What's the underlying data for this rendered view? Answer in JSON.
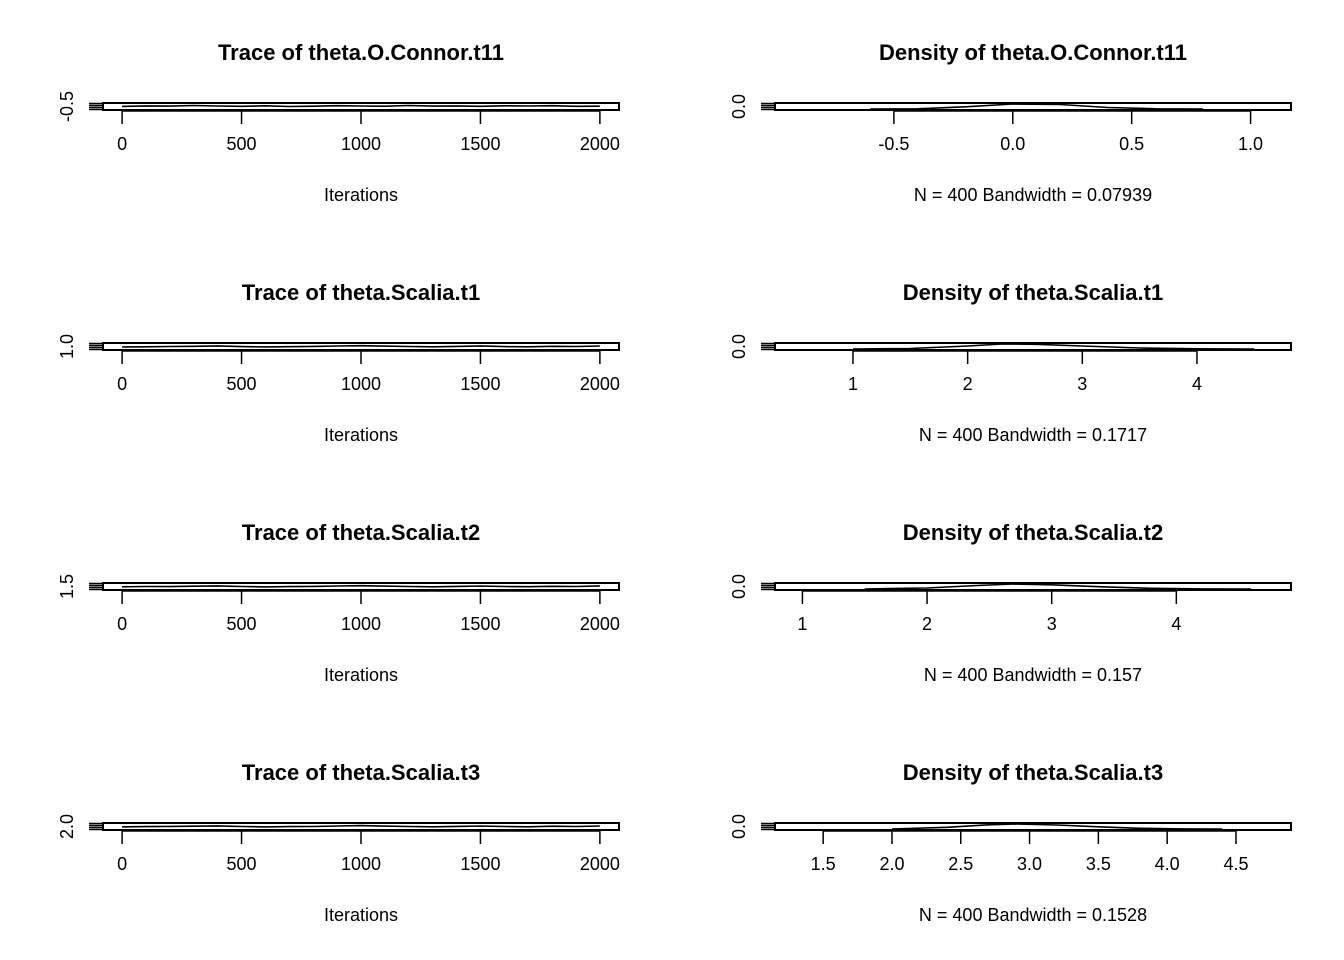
{
  "chart_data": [
    {
      "type": "line",
      "title": "Trace of theta.O.Connor.t11",
      "xlabel": "Iterations",
      "ylabel": "",
      "xlim": [
        -80,
        2080
      ],
      "x_ticks": [
        0,
        500,
        1000,
        1500,
        2000
      ],
      "x_tick_labels": [
        "0",
        "500",
        "1000",
        "1500",
        "2000"
      ],
      "y_tick_labels": [
        "-0.5"
      ],
      "series": [
        {
          "x": [
            0,
            100,
            200,
            300,
            400,
            500,
            600,
            700,
            800,
            900,
            1000,
            1100,
            1200,
            1300,
            1400,
            1500,
            1600,
            1700,
            1800,
            1900,
            2000
          ],
          "values": [
            0.52,
            0.62,
            0.58,
            0.7,
            0.61,
            0.55,
            0.64,
            0.5,
            0.57,
            0.67,
            0.6,
            0.56,
            0.69,
            0.58,
            0.62,
            0.54,
            0.63,
            0.59,
            0.66,
            0.55,
            0.57
          ]
        }
      ]
    },
    {
      "type": "line",
      "title": "Density of theta.O.Connor.t11",
      "xlabel": "N = 400   Bandwidth = 0.07939",
      "ylabel": "",
      "xlim": [
        -1.0,
        1.17
      ],
      "x_ticks": [
        -0.5,
        0.0,
        0.5,
        1.0
      ],
      "x_tick_labels": [
        "-0.5",
        "0.0",
        "0.5",
        "1.0"
      ],
      "y_tick_labels": [
        "0.0"
      ],
      "series": [
        {
          "x": [
            -0.6,
            -0.4,
            -0.2,
            0.0,
            0.2,
            0.4,
            0.6,
            0.8
          ],
          "values": [
            0.0,
            0.05,
            0.45,
            1.0,
            0.9,
            0.3,
            0.05,
            0.0
          ]
        }
      ]
    },
    {
      "type": "line",
      "title": "Trace of theta.Scalia.t1",
      "xlabel": "Iterations",
      "ylabel": "",
      "xlim": [
        -80,
        2080
      ],
      "x_ticks": [
        0,
        500,
        1000,
        1500,
        2000
      ],
      "x_tick_labels": [
        "0",
        "500",
        "1000",
        "1500",
        "2000"
      ],
      "y_tick_labels": [
        "1.0"
      ],
      "series": [
        {
          "x": [
            0,
            100,
            200,
            300,
            400,
            500,
            600,
            700,
            800,
            900,
            1000,
            1100,
            1200,
            1300,
            1400,
            1500,
            1600,
            1700,
            1800,
            1900,
            2000
          ],
          "values": [
            0.4,
            0.45,
            0.5,
            0.55,
            0.62,
            0.48,
            0.42,
            0.46,
            0.52,
            0.6,
            0.66,
            0.58,
            0.5,
            0.44,
            0.52,
            0.61,
            0.49,
            0.45,
            0.55,
            0.5,
            0.6
          ]
        }
      ]
    },
    {
      "type": "line",
      "title": "Density of theta.Scalia.t1",
      "xlabel": "N = 400   Bandwidth = 0.1717",
      "ylabel": "",
      "xlim": [
        0.32,
        4.82
      ],
      "x_ticks": [
        1,
        2,
        3,
        4
      ],
      "x_tick_labels": [
        "1",
        "2",
        "3",
        "4"
      ],
      "y_tick_labels": [
        "0.0"
      ],
      "series": [
        {
          "x": [
            1.0,
            1.5,
            2.0,
            2.3,
            2.6,
            3.0,
            3.5,
            4.0,
            4.5
          ],
          "values": [
            0.0,
            0.1,
            0.6,
            1.0,
            0.95,
            0.6,
            0.2,
            0.04,
            0.0
          ]
        }
      ]
    },
    {
      "type": "line",
      "title": "Trace of theta.Scalia.t2",
      "xlabel": "Iterations",
      "ylabel": "",
      "xlim": [
        -80,
        2080
      ],
      "x_ticks": [
        0,
        500,
        1000,
        1500,
        2000
      ],
      "x_tick_labels": [
        "0",
        "500",
        "1000",
        "1500",
        "2000"
      ],
      "y_tick_labels": [
        "1.5"
      ],
      "series": [
        {
          "x": [
            0,
            100,
            200,
            300,
            400,
            500,
            600,
            700,
            800,
            900,
            1000,
            1100,
            1200,
            1300,
            1400,
            1500,
            1600,
            1700,
            1800,
            1900,
            2000
          ],
          "values": [
            0.45,
            0.5,
            0.48,
            0.56,
            0.62,
            0.5,
            0.43,
            0.47,
            0.53,
            0.6,
            0.66,
            0.57,
            0.49,
            0.45,
            0.53,
            0.6,
            0.5,
            0.46,
            0.55,
            0.51,
            0.62
          ]
        }
      ]
    },
    {
      "type": "line",
      "title": "Density of theta.Scalia.t2",
      "xlabel": "N = 400   Bandwidth = 0.157",
      "ylabel": "",
      "xlim": [
        0.78,
        4.92
      ],
      "x_ticks": [
        1,
        2,
        3,
        4
      ],
      "x_tick_labels": [
        "1",
        "2",
        "3",
        "4"
      ],
      "y_tick_labels": [
        "0.0"
      ],
      "series": [
        {
          "x": [
            1.5,
            2.0,
            2.4,
            2.7,
            3.0,
            3.4,
            3.8,
            4.2,
            4.6
          ],
          "values": [
            0.0,
            0.2,
            0.7,
            1.0,
            0.85,
            0.45,
            0.15,
            0.03,
            0.0
          ]
        }
      ]
    },
    {
      "type": "line",
      "title": "Trace of theta.Scalia.t3",
      "xlabel": "Iterations",
      "ylabel": "",
      "xlim": [
        -80,
        2080
      ],
      "x_ticks": [
        0,
        500,
        1000,
        1500,
        2000
      ],
      "x_tick_labels": [
        "0",
        "500",
        "1000",
        "1500",
        "2000"
      ],
      "y_tick_labels": [
        "2.0"
      ],
      "series": [
        {
          "x": [
            0,
            100,
            200,
            300,
            400,
            500,
            600,
            700,
            800,
            900,
            1000,
            1100,
            1200,
            1300,
            1400,
            1500,
            1600,
            1700,
            1800,
            1900,
            2000
          ],
          "values": [
            0.42,
            0.47,
            0.52,
            0.56,
            0.63,
            0.49,
            0.43,
            0.47,
            0.51,
            0.59,
            0.67,
            0.58,
            0.51,
            0.44,
            0.52,
            0.6,
            0.5,
            0.45,
            0.56,
            0.5,
            0.61
          ]
        }
      ]
    },
    {
      "type": "line",
      "title": "Density of theta.Scalia.t3",
      "xlabel": "N = 400   Bandwidth = 0.1528",
      "ylabel": "",
      "xlim": [
        1.15,
        4.9
      ],
      "x_ticks": [
        1.5,
        2.0,
        2.5,
        3.0,
        3.5,
        4.0,
        4.5
      ],
      "x_tick_labels": [
        "1.5",
        "2.0",
        "2.5",
        "3.0",
        "3.5",
        "4.0",
        "4.5"
      ],
      "y_tick_labels": [
        "0.0"
      ],
      "series": [
        {
          "x": [
            2.0,
            2.4,
            2.7,
            2.9,
            3.2,
            3.5,
            3.8,
            4.1,
            4.4
          ],
          "values": [
            0.0,
            0.35,
            0.85,
            1.0,
            0.8,
            0.45,
            0.15,
            0.03,
            0.0
          ]
        }
      ]
    }
  ]
}
